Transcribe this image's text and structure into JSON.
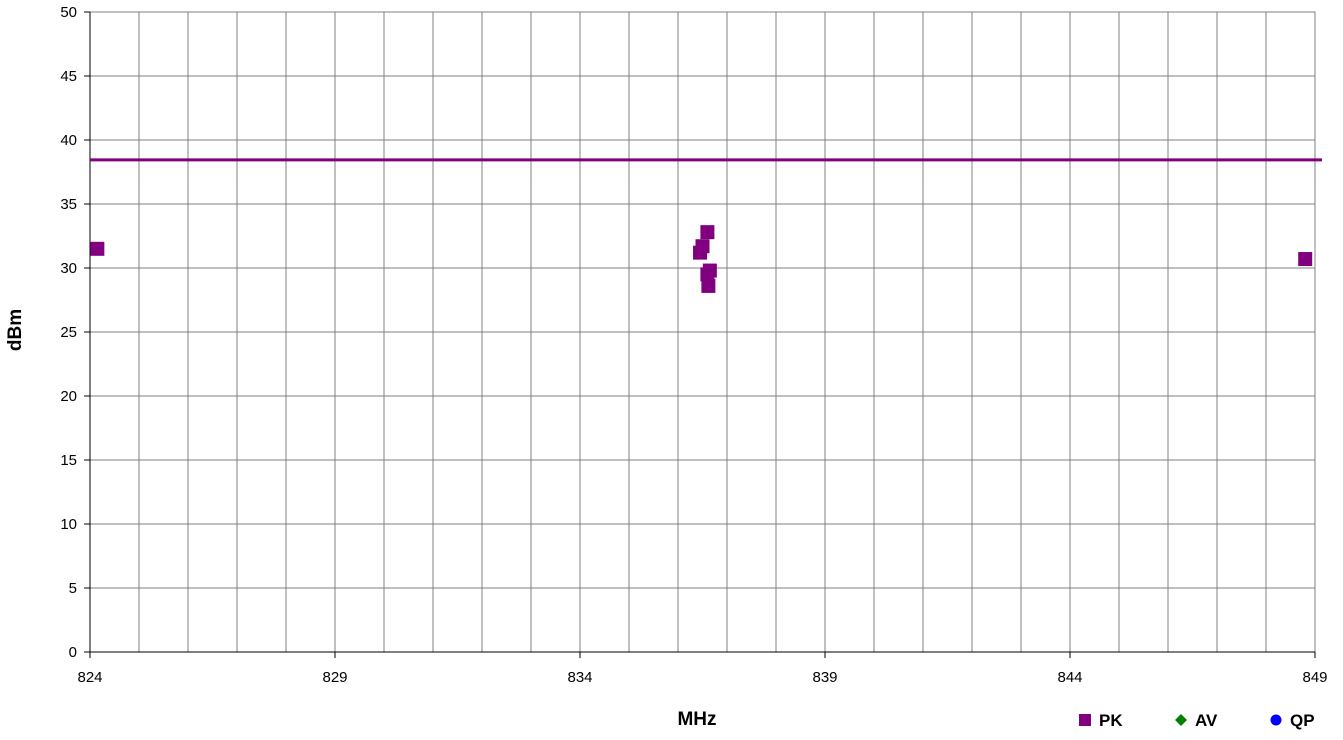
{
  "chart_data": {
    "type": "scatter",
    "xlabel": "MHz",
    "ylabel": "dBm",
    "xlim": [
      824,
      849
    ],
    "ylim": [
      0,
      50
    ],
    "x_ticks": [
      824,
      829,
      834,
      839,
      844,
      849
    ],
    "x_minor_step": 1,
    "y_ticks": [
      0,
      5,
      10,
      15,
      20,
      25,
      30,
      35,
      40,
      45,
      50
    ],
    "grid": true,
    "legend_position": "bottom-right",
    "limit_line": {
      "value": 38.45,
      "color": "#800080"
    },
    "series": [
      {
        "name": "PK",
        "marker": "square",
        "color": "#800080",
        "points": [
          {
            "x": 824.15,
            "y": 31.5
          },
          {
            "x": 836.45,
            "y": 31.2
          },
          {
            "x": 836.5,
            "y": 31.7
          },
          {
            "x": 836.6,
            "y": 32.8
          },
          {
            "x": 836.6,
            "y": 29.5
          },
          {
            "x": 836.65,
            "y": 29.8
          },
          {
            "x": 836.62,
            "y": 28.6
          },
          {
            "x": 848.8,
            "y": 30.7
          }
        ]
      },
      {
        "name": "AV",
        "marker": "diamond",
        "color": "#008000",
        "points": []
      },
      {
        "name": "QP",
        "marker": "circle",
        "color": "#0000ff",
        "points": []
      }
    ]
  }
}
